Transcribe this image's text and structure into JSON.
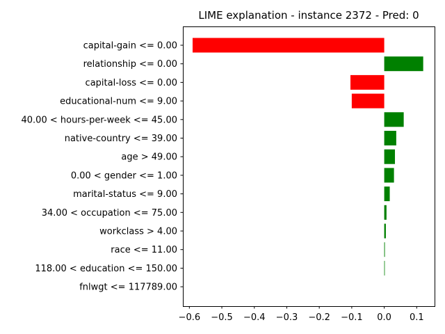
{
  "chart_data": {
    "type": "bar",
    "orientation": "horizontal",
    "title": "LIME explanation - instance 2372 - Pred: 0",
    "xlabel": "",
    "ylabel": "",
    "xlim": [
      -0.62,
      0.155
    ],
    "xticks": [
      -0.6,
      -0.5,
      -0.4,
      -0.3,
      -0.2,
      -0.1,
      0.0,
      0.1
    ],
    "xtick_labels": [
      "−0.6",
      "−0.5",
      "−0.4",
      "−0.3",
      "−0.2",
      "−0.1",
      "0.0",
      "0.1"
    ],
    "grid": false,
    "colors": {
      "positive": "#008000",
      "negative": "#ff0000"
    },
    "categories": [
      "capital-gain <= 0.00",
      "relationship <= 0.00",
      "capital-loss <= 0.00",
      "educational-num <= 9.00",
      "40.00 < hours-per-week <= 45.00",
      "native-country <= 39.00",
      "age > 49.00",
      "0.00 < gender <= 1.00",
      "marital-status <= 9.00",
      "34.00 < occupation <= 75.00",
      "workclass > 4.00",
      "race <= 11.00",
      "118.00 < education <= 150.00",
      "fnlwgt <= 117789.00"
    ],
    "values": [
      -0.59,
      0.12,
      -0.104,
      -0.1,
      0.06,
      0.037,
      0.033,
      0.03,
      0.017,
      0.007,
      0.005,
      0.002,
      0.001,
      0.0
    ]
  }
}
